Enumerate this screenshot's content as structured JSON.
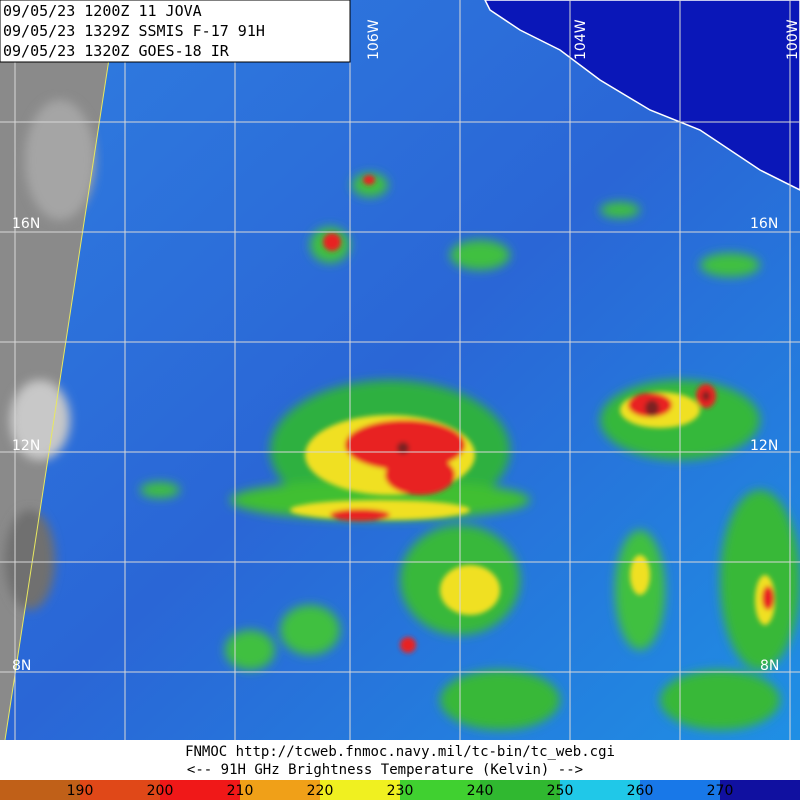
{
  "header": {
    "lines": [
      "09/05/23 1200Z  11 JOVA",
      "09/05/23 1329Z  SSMIS F-17 91H",
      "09/05/23 1320Z  GOES-18 IR"
    ]
  },
  "grid_labels": {
    "lon": [
      "106W",
      "104W",
      "100W"
    ],
    "lat_left": [
      "16N",
      "12N",
      "8N"
    ],
    "lat_right": [
      "16N",
      "12N",
      "8N"
    ]
  },
  "footer": {
    "source": "FNMOC  http://tcweb.fnmoc.navy.mil/tc-bin/tc_web.cgi",
    "legend_title": "<--  91H GHz Brightness Temperature (Kelvin)  -->"
  },
  "colorbar": {
    "ticks": [
      190,
      200,
      210,
      220,
      230,
      240,
      250,
      260,
      270
    ]
  }
}
